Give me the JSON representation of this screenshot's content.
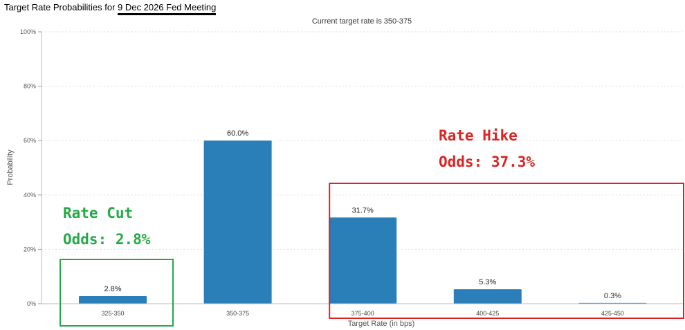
{
  "header": {
    "title_prefix": "Target Rate Probabilities for ",
    "title_date": "9 Dec 2026 Fed Meeting"
  },
  "chart_data": {
    "type": "bar",
    "title": "Target Rate Probabilities for 9 Dec 2026 Fed Meeting",
    "subtitle": "Current target rate is 350-375",
    "xlabel": "Target Rate (in bps)",
    "ylabel": "Probability",
    "ylim": [
      0,
      100
    ],
    "yticks": [
      0,
      20,
      40,
      60,
      80,
      100
    ],
    "ytick_labels": [
      "0%",
      "20%",
      "40%",
      "60%",
      "80%",
      "100%"
    ],
    "categories": [
      "325-350",
      "350-375",
      "375-400",
      "400-425",
      "425-450"
    ],
    "values": [
      2.8,
      60.0,
      31.7,
      5.3,
      0.3
    ],
    "value_labels": [
      "2.8%",
      "60.0%",
      "31.7%",
      "5.3%",
      "0.3%"
    ],
    "grid": true,
    "bar_color": "#2a7fb8",
    "annotations": [
      {
        "name": "rate-cut",
        "lines": [
          "Rate Cut",
          "Odds: 2.8%"
        ],
        "color": "#22aa44",
        "box_categories": [
          "325-350"
        ]
      },
      {
        "name": "rate-hike",
        "lines": [
          "Rate Hike",
          "Odds: 37.3%"
        ],
        "color": "#dd2222",
        "box_categories": [
          "375-400",
          "400-425",
          "425-450"
        ]
      }
    ]
  }
}
